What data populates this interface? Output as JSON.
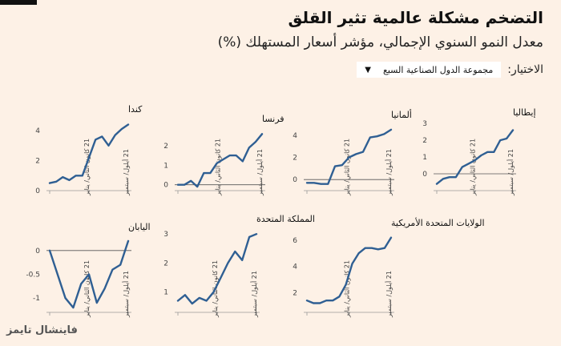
{
  "title": "التضخم مشكلة عالمية تثير القلق",
  "subtitle": "معدل النمو السنوي الإجمالي، مؤشر أسعار المستهلك (%)",
  "selector": {
    "label": "الاختيار:",
    "value": "مجموعة الدول الصناعية السبع",
    "icon": "chevron-down-icon"
  },
  "source": "فاينشال تايمز",
  "colors": {
    "line": "#2f5f93",
    "axis": "#999999",
    "zero": "#555555"
  },
  "chart_data": [
    {
      "type": "line",
      "title": "كندا",
      "ylim": [
        0,
        4.8
      ],
      "yticks": [
        0,
        2,
        4
      ],
      "xticks": [
        "21 كانون الثاني/ يناير",
        "21 أيلول/ سبتمبر"
      ],
      "values": [
        0.5,
        0.6,
        0.9,
        0.7,
        1.0,
        1.0,
        2.2,
        3.4,
        3.6,
        3.0,
        3.7,
        4.1,
        4.4
      ]
    },
    {
      "type": "line",
      "title": "فرنسا",
      "ylim": [
        -0.3,
        2.9
      ],
      "yticks": [
        0,
        1,
        2
      ],
      "xticks": [
        "21 كانون الثاني/ يناير",
        "21 أيلول/ سبتمبر"
      ],
      "values": [
        0.0,
        0.0,
        0.2,
        -0.1,
        0.6,
        0.6,
        1.1,
        1.3,
        1.5,
        1.5,
        1.2,
        1.9,
        2.2,
        2.6
      ]
    },
    {
      "type": "line",
      "title": "ألمانيا",
      "ylim": [
        -1,
        5
      ],
      "yticks": [
        0,
        2,
        4
      ],
      "xticks": [
        "21 كانون الثاني/ يناير",
        "21 أيلول/ سبتمبر"
      ],
      "values": [
        -0.3,
        -0.3,
        -0.4,
        -0.4,
        1.2,
        1.3,
        2.0,
        2.3,
        2.5,
        3.8,
        3.9,
        4.1,
        4.5
      ]
    },
    {
      "type": "line",
      "title": "إيطاليا",
      "ylim": [
        -1,
        3.1
      ],
      "yticks": [
        0,
        1,
        2,
        3
      ],
      "xticks": [
        "21 كانون الثاني/ يناير",
        "21 أيلول/ سبتمبر"
      ],
      "values": [
        -0.6,
        -0.3,
        -0.2,
        -0.2,
        0.4,
        0.6,
        0.8,
        1.1,
        1.3,
        1.3,
        2.0,
        2.1,
        2.6
      ]
    },
    {
      "type": "line",
      "title": "اليابان",
      "ylim": [
        -1.3,
        0.3
      ],
      "yticks": [
        0,
        -0.5,
        -1
      ],
      "xticks": [
        "21 كانون الثاني/ يناير",
        "21 أيلول/ سبتمبر"
      ],
      "values": [
        0.0,
        -0.5,
        -1.0,
        -1.2,
        -0.7,
        -0.5,
        -1.1,
        -0.8,
        -0.4,
        -0.3,
        0.2
      ]
    },
    {
      "type": "line",
      "title": "المملكة المتحدة",
      "ylim": [
        0.3,
        3.2
      ],
      "yticks": [
        1,
        2,
        3
      ],
      "xticks": [
        "21 كانون الثاني/ يناير",
        "21 أيلول/ سبتمبر"
      ],
      "values": [
        0.7,
        0.9,
        0.6,
        0.8,
        0.7,
        1.0,
        1.5,
        2.0,
        2.4,
        2.1,
        2.9,
        3.0
      ]
    },
    {
      "type": "line",
      "title": "الولايات المتحدة الأمريكية",
      "ylim": [
        0.5,
        6.6
      ],
      "yticks": [
        2,
        4,
        6
      ],
      "xticks": [
        "21 كانون الثاني/ يناير",
        "21 أيلول/ سبتمبر"
      ],
      "values": [
        1.4,
        1.2,
        1.2,
        1.4,
        1.4,
        1.7,
        2.6,
        4.2,
        5.0,
        5.4,
        5.4,
        5.3,
        5.4,
        6.2
      ]
    }
  ]
}
